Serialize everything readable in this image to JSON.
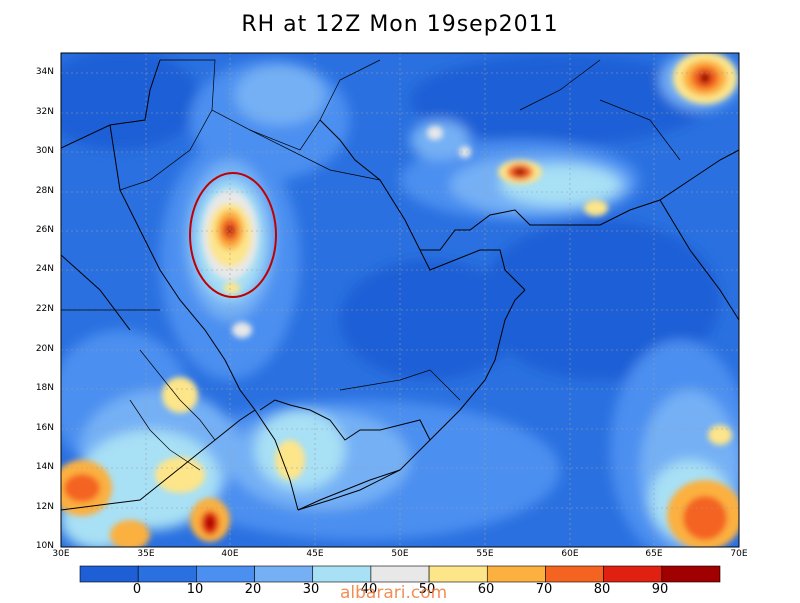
{
  "title": "RH at 12Z Mon 19sep2011",
  "watermark": "albarari.com",
  "lat_labels": [
    "34N",
    "32N",
    "30N",
    "28N",
    "26N",
    "24N",
    "22N",
    "20N",
    "18N",
    "16N",
    "14N",
    "12N",
    "10N"
  ],
  "lon_labels": [
    "30E",
    "35E",
    "40E",
    "45E",
    "50E",
    "55E",
    "60E",
    "65E",
    "70E"
  ],
  "colorbar": {
    "labels": [
      "0",
      "10",
      "20",
      "30",
      "40",
      "50",
      "60",
      "70",
      "80",
      "90"
    ],
    "colors": [
      "#1f5fd6",
      "#2a70e0",
      "#4b8ff0",
      "#75b0f5",
      "#a8e0f5",
      "#e8e8e8",
      "#fde58a",
      "#fbb040",
      "#f46420",
      "#e02010",
      "#a00000"
    ]
  },
  "annotation": {
    "shape": "ellipse",
    "color": "#c00000",
    "label": ""
  }
}
